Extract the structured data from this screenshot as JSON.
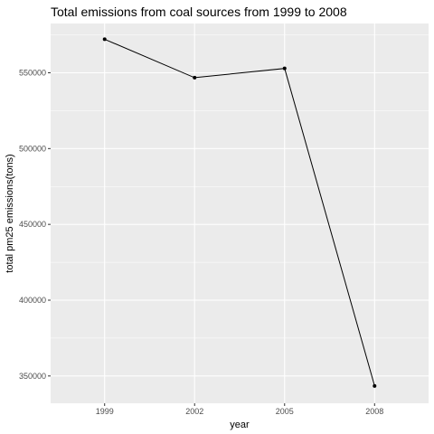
{
  "chart_data": {
    "type": "line",
    "title": "Total emissions from coal sources from 1999 to 2008",
    "xlabel": "year",
    "ylabel": "total pm25 emissions(tons)",
    "categories": [
      "1999",
      "2002",
      "2005",
      "2008"
    ],
    "values": [
      572126,
      546789,
      552881,
      343432
    ],
    "yticks": [
      350000,
      400000,
      450000,
      500000,
      550000
    ],
    "ytick_labels": [
      "350000",
      "400000",
      "450000",
      "500000",
      "550000"
    ],
    "ylim": [
      332000,
      582500
    ],
    "grid": true,
    "legend": "none",
    "colors": {
      "panel": "#ebebeb",
      "grid": "#ffffff",
      "line": "#000000",
      "tick_text": "#4d4d4d"
    }
  }
}
